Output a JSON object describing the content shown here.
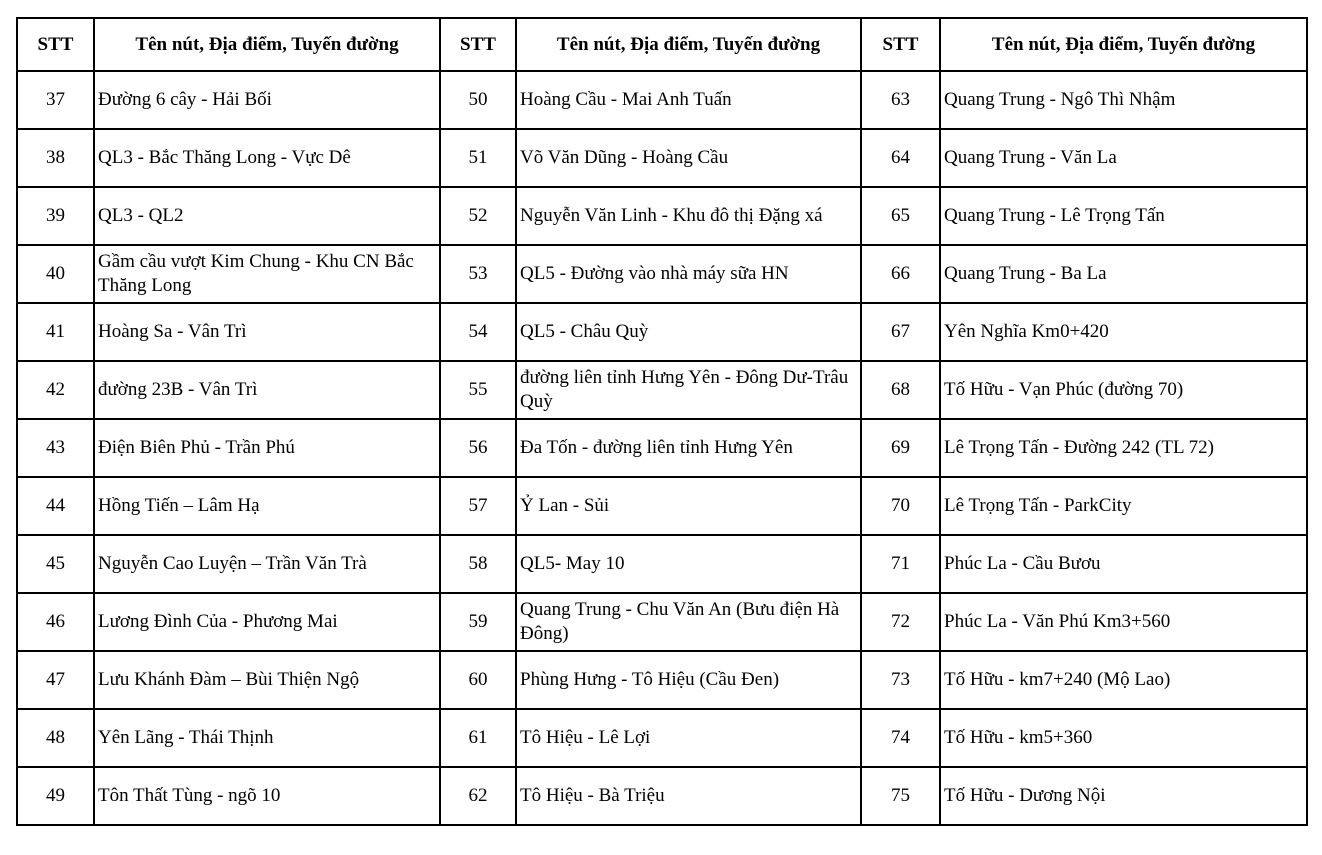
{
  "headers": [
    "STT",
    "Tên nút, Địa điểm, Tuyến đường",
    "STT",
    "Tên nút, Địa điểm, Tuyến đường",
    "STT",
    "Tên nút, Địa điểm, Tuyến đường"
  ],
  "rows": [
    [
      "37",
      "Đường 6 cây - Hải Bối",
      "50",
      "Hoàng Cầu - Mai Anh Tuấn",
      "63",
      "Quang Trung - Ngô Thì Nhậm"
    ],
    [
      "38",
      "QL3 - Bắc Thăng Long - Vực Dê",
      "51",
      "Võ Văn Dũng - Hoàng Cầu",
      "64",
      "Quang Trung - Văn La"
    ],
    [
      "39",
      "QL3 - QL2",
      "52",
      "Nguyễn Văn Linh - Khu đô thị Đặng xá",
      "65",
      "Quang Trung - Lê Trọng Tấn"
    ],
    [
      "40",
      "Gầm cầu vượt Kim Chung - Khu CN Bắc Thăng Long",
      "53",
      "QL5 - Đường vào nhà máy sữa HN",
      "66",
      "Quang Trung - Ba La"
    ],
    [
      "41",
      "Hoàng Sa - Vân Trì",
      "54",
      "QL5 - Châu Quỳ",
      "67",
      "Yên Nghĩa Km0+420"
    ],
    [
      "42",
      "đường 23B - Vân Trì",
      "55",
      "đường liên tỉnh Hưng Yên - Đông Dư-Trâu Quỳ",
      "68",
      "Tố Hữu - Vạn Phúc (đường 70)"
    ],
    [
      "43",
      "Điện Biên Phủ - Trần Phú",
      "56",
      "Đa Tốn - đường liên tỉnh Hưng Yên",
      "69",
      "Lê Trọng Tấn - Đường 242 (TL 72)"
    ],
    [
      "44",
      "Hồng Tiến – Lâm Hạ",
      "57",
      "Ỷ Lan - Sủi",
      "70",
      "Lê Trọng Tấn - ParkCity"
    ],
    [
      "45",
      "Nguyễn Cao Luyện – Trần Văn Trà",
      "58",
      "QL5- May 10",
      "71",
      "Phúc La - Cầu Bươu"
    ],
    [
      "46",
      "Lương Đình Của - Phương Mai",
      "59",
      "Quang Trung - Chu Văn An (Bưu điện Hà Đông)",
      "72",
      "Phúc La - Văn Phú Km3+560"
    ],
    [
      "47",
      "Lưu Khánh Đàm – Bùi Thiện Ngộ",
      "60",
      "Phùng Hưng - Tô Hiệu (Cầu Đen)",
      "73",
      "Tố Hữu - km7+240 (Mộ Lao)"
    ],
    [
      "48",
      "Yên Lãng - Thái Thịnh",
      "61",
      "Tô Hiệu - Lê Lợi",
      "74",
      "Tố Hữu - km5+360"
    ],
    [
      "49",
      "Tôn Thất Tùng - ngõ 10",
      "62",
      "Tô Hiệu - Bà Triệu",
      "75",
      "Tố Hữu - Dương Nội"
    ]
  ]
}
